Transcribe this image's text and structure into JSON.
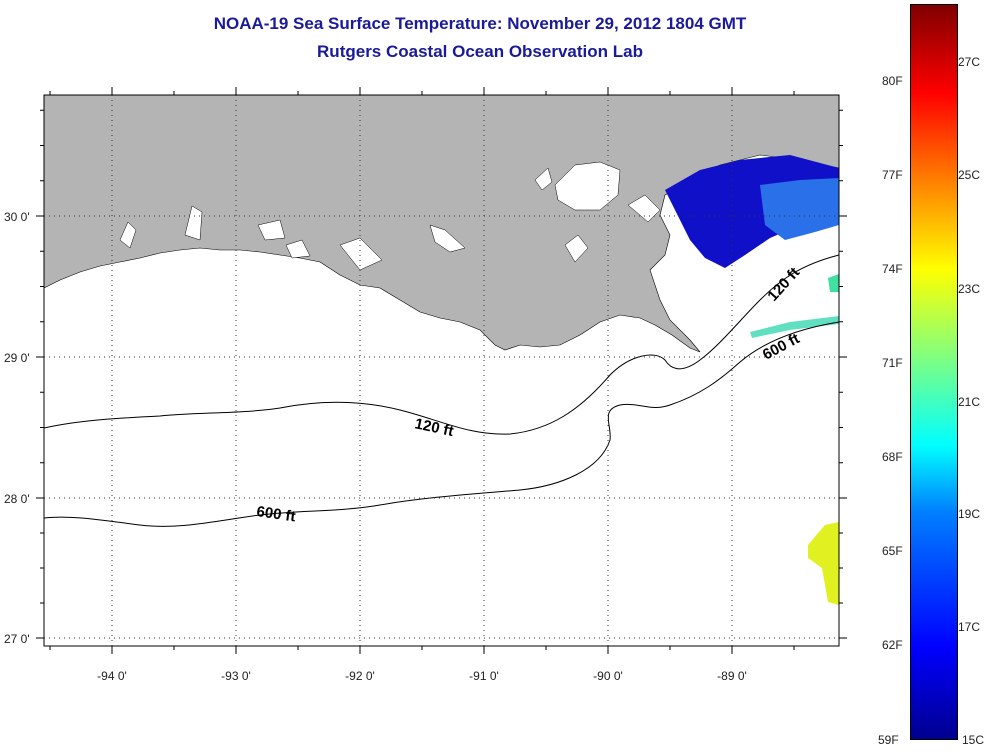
{
  "header": {
    "title": "NOAA-19 Sea Surface Temperature:  November 29, 2012 1804 GMT",
    "subtitle": "Rutgers Coastal Ocean Observation Lab"
  },
  "map": {
    "lat_labels": [
      "30 0'",
      "29 0'",
      "28 0'",
      "27 0'"
    ],
    "lon_labels": [
      "-94 0'",
      "-93 0'",
      "-92 0'",
      "-91 0'",
      "-90 0'",
      "-89 0'"
    ],
    "contour_labels": [
      "120 ft",
      "600 ft",
      "120 ft",
      "600 ft"
    ]
  },
  "colorbar": {
    "fahrenheit": [
      "80F",
      "77F",
      "74F",
      "71F",
      "68F",
      "65F",
      "62F",
      "59F"
    ],
    "celsius": [
      "27C",
      "25C",
      "23C",
      "21C",
      "19C",
      "17C",
      "15C"
    ]
  }
}
